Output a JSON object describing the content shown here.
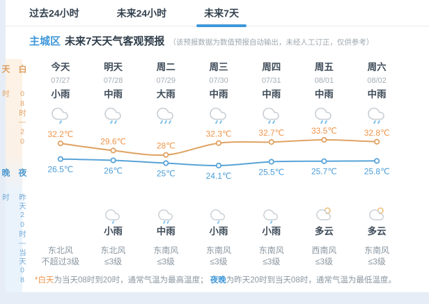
{
  "tabs": [
    {
      "label": "过去24小时",
      "active": false
    },
    {
      "label": "未来24小时",
      "active": false
    },
    {
      "label": "未来7天",
      "active": true
    }
  ],
  "header": {
    "region": "主城区",
    "title": "未来7天天气客观预报",
    "note": "（该预报数据为数值预报自动输出，未经人工订正，仅供参考）"
  },
  "sidebar": {
    "day_label": "白天",
    "day_time": "08时—20时",
    "night_label": "夜晚",
    "night_time": "昨天20时—当天08时"
  },
  "days": [
    {
      "name": "今天",
      "date": "07/27",
      "day_weather": "小雨",
      "day_icon": "rain-1",
      "night_weather": "",
      "night_icon": "",
      "wind_dir": "东北风",
      "wind_level": "不超过3级"
    },
    {
      "name": "明天",
      "date": "07/28",
      "day_weather": "中雨",
      "day_icon": "rain-2",
      "night_weather": "小雨",
      "night_icon": "rain-1",
      "wind_dir": "东北风",
      "wind_level": "≤3级"
    },
    {
      "name": "周二",
      "date": "07/29",
      "day_weather": "大雨",
      "day_icon": "rain-3",
      "night_weather": "中雨",
      "night_icon": "rain-2",
      "wind_dir": "东南风",
      "wind_level": "≤3级"
    },
    {
      "name": "周三",
      "date": "07/30",
      "day_weather": "中雨",
      "day_icon": "rain-2",
      "night_weather": "小雨",
      "night_icon": "rain-1",
      "wind_dir": "东南风",
      "wind_level": "≤3级"
    },
    {
      "name": "周四",
      "date": "07/31",
      "day_weather": "中雨",
      "day_icon": "rain-2",
      "night_weather": "小雨",
      "night_icon": "rain-1",
      "wind_dir": "东南风",
      "wind_level": "≤3级"
    },
    {
      "name": "周五",
      "date": "08/01",
      "day_weather": "中雨",
      "day_icon": "rain-2",
      "night_weather": "多云",
      "night_icon": "cloudy-moon",
      "wind_dir": "西南风",
      "wind_level": "≤3级"
    },
    {
      "name": "周六",
      "date": "08/02",
      "day_weather": "中雨",
      "day_icon": "rain-2",
      "night_weather": "多云",
      "night_icon": "cloudy-moon",
      "wind_dir": "东南风",
      "wind_level": "≤3级"
    }
  ],
  "chart_data": {
    "type": "line",
    "categories": [
      "今天",
      "明天",
      "周二",
      "周三",
      "周四",
      "周五",
      "周六"
    ],
    "series": [
      {
        "name": "白天最高气温",
        "color": "#dfa263",
        "label_color": "#ef9449",
        "values": [
          32.2,
          29.6,
          28,
          32.3,
          32.7,
          33.5,
          32.8
        ]
      },
      {
        "name": "夜晚最低气温",
        "color": "#58a3d8",
        "label_color": "#4b9dd8",
        "values": [
          26.5,
          26,
          25,
          24.1,
          25.5,
          25.7,
          25.8
        ]
      }
    ],
    "unit": "℃",
    "ylim": [
      23,
      35
    ],
    "grid": false,
    "legend": "none"
  },
  "footer": {
    "parts": [
      {
        "text": "*",
        "style": "star"
      },
      {
        "text": "白天",
        "style": "day"
      },
      {
        "text": "为当天08时到20时，通常气温为最高温度；  ",
        "style": "plain"
      },
      {
        "text": "夜晚",
        "style": "night"
      },
      {
        "text": "为昨天20时到当天08时，通常气温为最低温度。",
        "style": "plain"
      }
    ]
  },
  "colors": {
    "accent_blue": "#3e97d9",
    "high_line": "#dfa263",
    "high_label": "#ef9449",
    "low_line": "#58a3d8",
    "low_label": "#4b9dd8",
    "cloud_stroke": "#c7ced4",
    "raindrop": "#86c5ea",
    "moon": "#f0b96e"
  }
}
